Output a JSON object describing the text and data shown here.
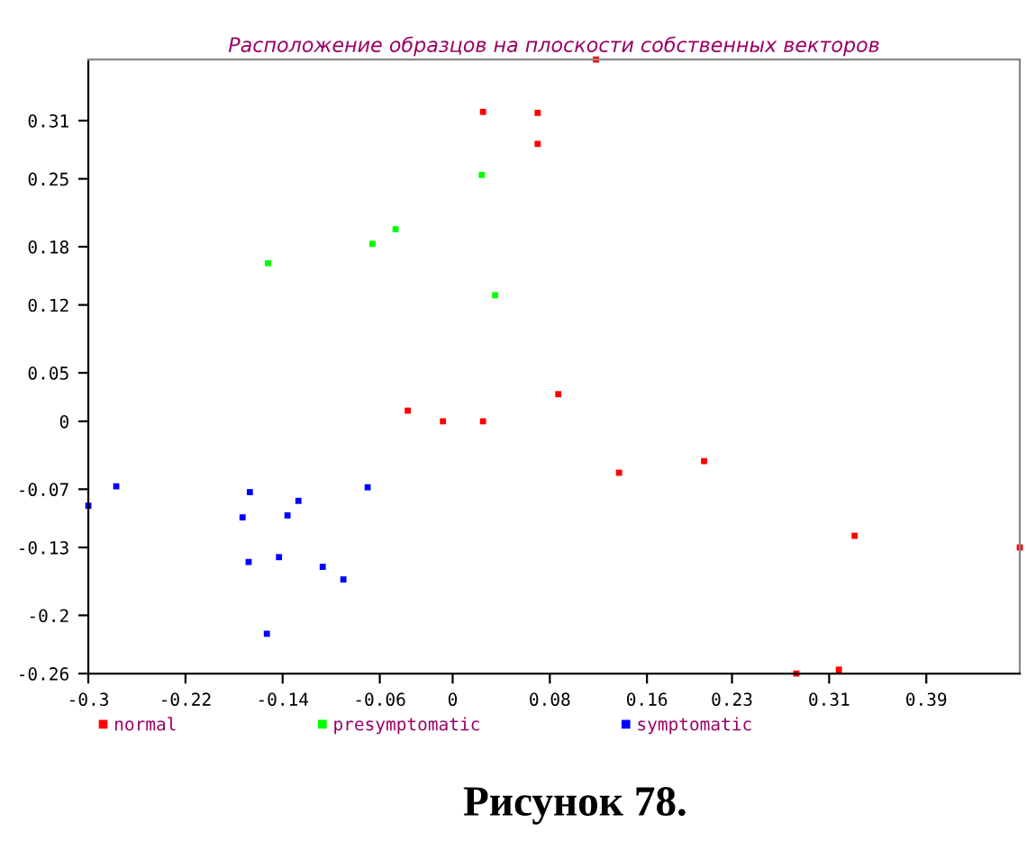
{
  "chart_data": {
    "type": "scatter",
    "title": "Расположение образцов на плоскости собственных векторов",
    "annotations": [
      "Рисунок 78."
    ],
    "series": [
      {
        "name": "normal",
        "color": "#ff0000",
        "x": [
          0.025,
          0.07,
          0.07,
          0.118,
          -0.037,
          -0.008,
          0.025,
          0.087,
          0.137,
          0.207,
          0.331,
          0.467,
          0.283,
          0.318
        ],
        "values": [
          0.319,
          0.318,
          0.286,
          0.373,
          0.011,
          0.0,
          0.0,
          0.028,
          -0.053,
          -0.041,
          -0.118,
          -0.13,
          -0.26,
          -0.256
        ]
      },
      {
        "name": "presymptomatic",
        "color": "#00ff00",
        "x": [
          0.024,
          -0.152,
          -0.066,
          -0.047,
          0.035
        ],
        "values": [
          0.254,
          0.163,
          0.183,
          0.198,
          0.13
        ]
      },
      {
        "name": "symptomatic",
        "color": "#0000ff",
        "x": [
          -0.3,
          -0.277,
          -0.167,
          -0.173,
          -0.127,
          -0.136,
          -0.168,
          -0.143,
          -0.107,
          -0.09,
          -0.153,
          -0.07
        ],
        "values": [
          -0.087,
          -0.067,
          -0.073,
          -0.099,
          -0.082,
          -0.097,
          -0.145,
          -0.14,
          -0.15,
          -0.163,
          -0.219,
          -0.068
        ]
      }
    ],
    "xlim": [
      -0.3,
      0.467
    ],
    "ylim": [
      -0.26,
      0.373
    ],
    "xticks": [
      -0.3,
      -0.22,
      -0.14,
      -0.06,
      0,
      0.08,
      0.16,
      0.23,
      0.31,
      0.39
    ],
    "yticks": [
      -0.26,
      -0.2,
      -0.13,
      -0.07,
      0,
      0.05,
      0.12,
      0.18,
      0.25,
      0.31
    ],
    "marker": "square",
    "grid": false,
    "legend": "bottom"
  }
}
